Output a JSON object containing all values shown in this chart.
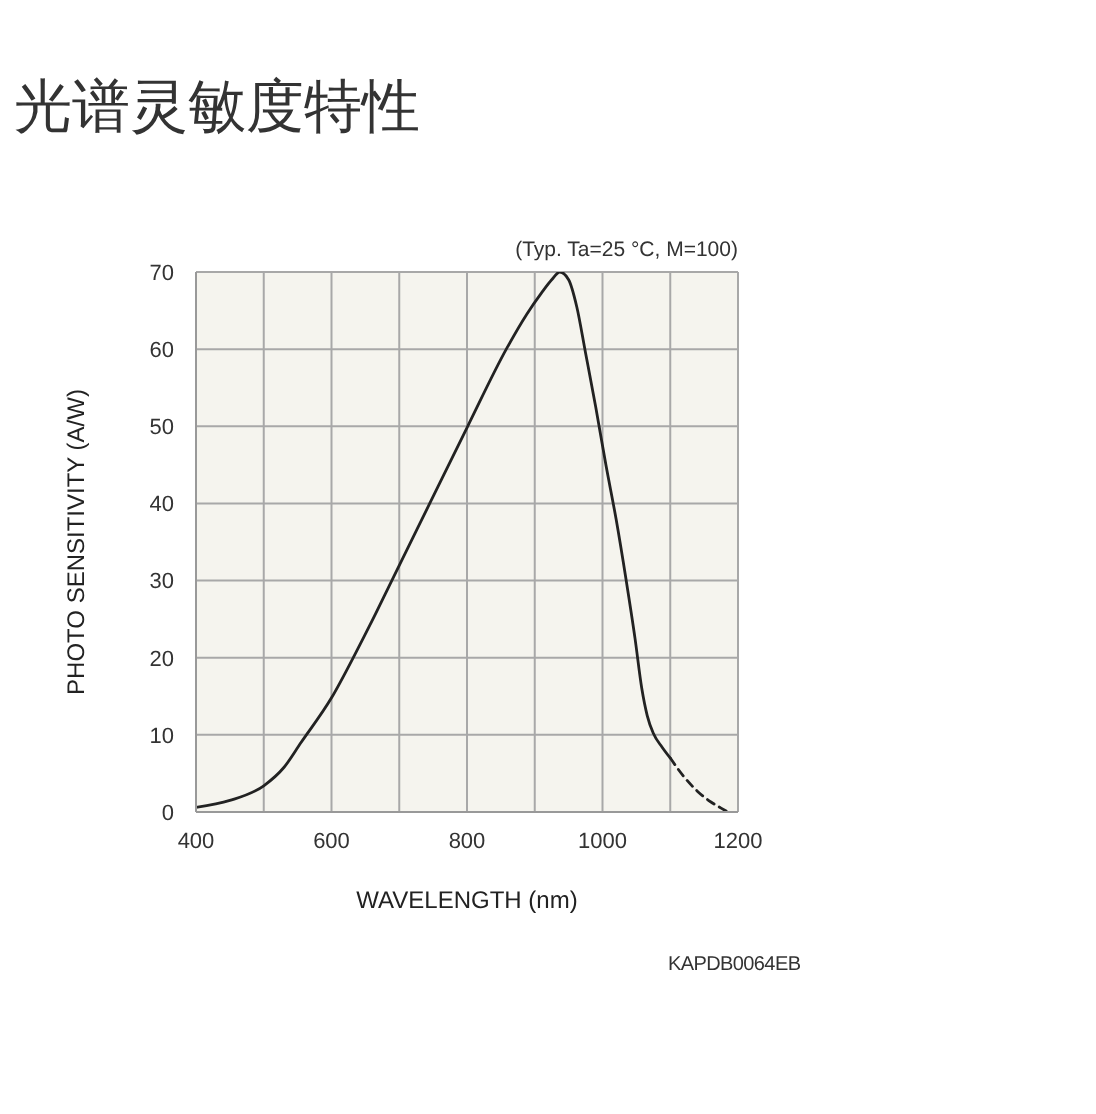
{
  "chart_data": {
    "type": "line",
    "title": "光谱灵敏度特性",
    "xlabel": "WAVELENGTH (nm)",
    "ylabel": "PHOTO SENSITIVITY (A/W)",
    "annotations": [
      "(Typ. Ta=25 °C, M=100)",
      "KAPDB0064EB"
    ],
    "series": [
      {
        "color": "#222222",
        "line_style": "solid",
        "x": [
          400,
          450,
          500,
          530,
          555,
          600,
          635,
          660,
          689,
          745,
          801,
          858,
          888,
          910,
          925,
          937,
          950,
          962,
          975,
          990,
          1005,
          1020,
          1035,
          1048,
          1058,
          1066,
          1075,
          1088,
          1100
        ],
        "values": [
          0.6,
          1.5,
          3.4,
          5.8,
          9,
          14.8,
          20.5,
          24.8,
          30,
          40,
          50,
          60,
          64.5,
          67.3,
          69,
          70,
          69,
          65.5,
          59.5,
          52.5,
          45,
          38,
          30,
          22.5,
          16,
          12.5,
          10.2,
          8.4,
          7
        ]
      },
      {
        "color": "#222222",
        "line_style": "dashed",
        "x": [
          1100,
          1120,
          1140,
          1160,
          1175,
          1185
        ],
        "values": [
          7,
          4.6,
          2.7,
          1.3,
          0.5,
          0
        ]
      }
    ],
    "xlim": [
      400,
      1200
    ],
    "xticks": [
      400,
      {
        "value": 500,
        "label": null
      },
      600,
      {
        "value": 700,
        "label": null
      },
      800,
      {
        "value": 900,
        "label": null
      },
      1000,
      {
        "value": 1100,
        "label": null
      },
      1200
    ],
    "ylim": [
      0,
      70
    ],
    "yticks": [
      0,
      10,
      20,
      30,
      40,
      50,
      60,
      70
    ],
    "grid": true,
    "marker": "none"
  }
}
